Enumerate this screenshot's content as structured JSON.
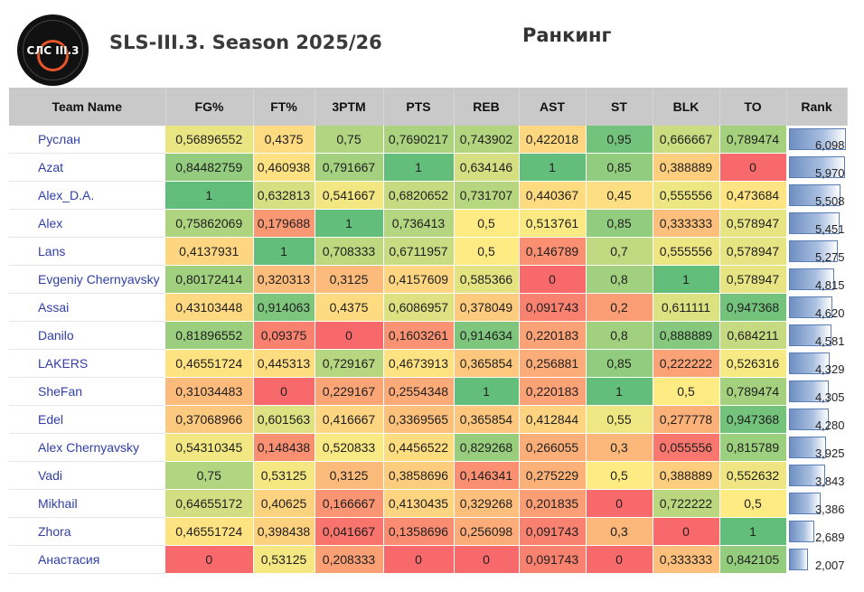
{
  "header": {
    "logo_text": "СЛС III.3",
    "title": "SLS-III.3. Season 2025/26",
    "heading": "Ранкинг"
  },
  "table": {
    "columns": [
      "Team Name",
      "FG%",
      "FT%",
      "3PTM",
      "PTS",
      "REB",
      "AST",
      "ST",
      "BLK",
      "TO",
      "Rank"
    ],
    "rows": [
      {
        "team": "Руслан",
        "cells": [
          "0,56896552",
          "0,4375",
          "0,75",
          "0,7690217",
          "0,743902",
          "0,422018",
          "0,95",
          "0,666667",
          "0,789474"
        ],
        "rank": "6,098",
        "rank_value": 6.098
      },
      {
        "team": "Azat",
        "cells": [
          "0,84482759",
          "0,460938",
          "0,791667",
          "1",
          "0,634146",
          "1",
          "0,85",
          "0,388889",
          "0"
        ],
        "rank": "5,970",
        "rank_value": 5.97
      },
      {
        "team": "Alex_D.A.",
        "cells": [
          "1",
          "0,632813",
          "0,541667",
          "0,6820652",
          "0,731707",
          "0,440367",
          "0,45",
          "0,555556",
          "0,473684"
        ],
        "rank": "5,508",
        "rank_value": 5.508
      },
      {
        "team": "Alex",
        "cells": [
          "0,75862069",
          "0,179688",
          "1",
          "0,736413",
          "0,5",
          "0,513761",
          "0,85",
          "0,333333",
          "0,578947"
        ],
        "rank": "5,451",
        "rank_value": 5.451
      },
      {
        "team": "Lans",
        "cells": [
          "0,4137931",
          "1",
          "0,708333",
          "0,6711957",
          "0,5",
          "0,146789",
          "0,7",
          "0,555556",
          "0,578947"
        ],
        "rank": "5,275",
        "rank_value": 5.275
      },
      {
        "team": "Evgeniy Chernyavsky",
        "cells": [
          "0,80172414",
          "0,320313",
          "0,3125",
          "0,4157609",
          "0,585366",
          "0",
          "0,8",
          "1",
          "0,578947"
        ],
        "rank": "4,815",
        "rank_value": 4.815
      },
      {
        "team": "Assai",
        "cells": [
          "0,43103448",
          "0,914063",
          "0,4375",
          "0,6086957",
          "0,378049",
          "0,091743",
          "0,2",
          "0,611111",
          "0,947368"
        ],
        "rank": "4,620",
        "rank_value": 4.62
      },
      {
        "team": "Danilo",
        "cells": [
          "0,81896552",
          "0,09375",
          "0",
          "0,1603261",
          "0,914634",
          "0,220183",
          "0,8",
          "0,888889",
          "0,684211"
        ],
        "rank": "4,581",
        "rank_value": 4.581
      },
      {
        "team": "LAKERS",
        "cells": [
          "0,46551724",
          "0,445313",
          "0,729167",
          "0,4673913",
          "0,365854",
          "0,256881",
          "0,85",
          "0,222222",
          "0,526316"
        ],
        "rank": "4,329",
        "rank_value": 4.329
      },
      {
        "team": "SheFan",
        "cells": [
          "0,31034483",
          "0",
          "0,229167",
          "0,2554348",
          "1",
          "0,220183",
          "1",
          "0,5",
          "0,789474"
        ],
        "rank": "4,305",
        "rank_value": 4.305
      },
      {
        "team": "Edel",
        "cells": [
          "0,37068966",
          "0,601563",
          "0,416667",
          "0,3369565",
          "0,365854",
          "0,412844",
          "0,55",
          "0,277778",
          "0,947368"
        ],
        "rank": "4,280",
        "rank_value": 4.28
      },
      {
        "team": "Alex Chernyavsky",
        "cells": [
          "0,54310345",
          "0,148438",
          "0,520833",
          "0,4456522",
          "0,829268",
          "0,266055",
          "0,3",
          "0,055556",
          "0,815789"
        ],
        "rank": "3,925",
        "rank_value": 3.925
      },
      {
        "team": "Vadi",
        "cells": [
          "0,75",
          "0,53125",
          "0,3125",
          "0,3858696",
          "0,146341",
          "0,275229",
          "0,5",
          "0,388889",
          "0,552632"
        ],
        "rank": "3,843",
        "rank_value": 3.843
      },
      {
        "team": "Mikhail",
        "cells": [
          "0,64655172",
          "0,40625",
          "0,166667",
          "0,4130435",
          "0,329268",
          "0,201835",
          "0",
          "0,722222",
          "0,5"
        ],
        "rank": "3,386",
        "rank_value": 3.386
      },
      {
        "team": "Zhora",
        "cells": [
          "0,46551724",
          "0,398438",
          "0,041667",
          "0,1358696",
          "0,256098",
          "0,091743",
          "0,3",
          "0",
          "1"
        ],
        "rank": "2,689",
        "rank_value": 2.689
      },
      {
        "team": "Анастасия",
        "cells": [
          "0",
          "0,53125",
          "0,208333",
          "0",
          "0",
          "0,091743",
          "0",
          "0,333333",
          "0,842105"
        ],
        "rank": "2,007",
        "rank_value": 2.007
      }
    ],
    "rank_max": 6.098
  },
  "colors": {
    "scale_low": "#f8696b",
    "scale_mid": "#ffeb84",
    "scale_high": "#63be7b",
    "header_bg": "#c9c9c9",
    "team_text": "#2f3fa8",
    "bar": "#6e8fc2"
  }
}
